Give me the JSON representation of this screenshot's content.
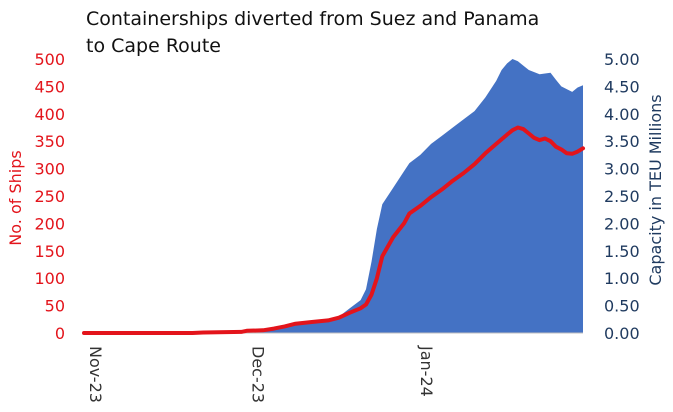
{
  "chart_data": {
    "type": "line",
    "title_lines": [
      "Containerships diverted from Suez and Panama",
      "to Cape Route"
    ],
    "x_ticks": [
      "Nov-23",
      "Dec-23",
      "Jan-24"
    ],
    "x_range_days": [
      0,
      92
    ],
    "y_left": {
      "label": "No. of Ships",
      "ticks": [
        "0",
        "50",
        "100",
        "150",
        "200",
        "250",
        "300",
        "350",
        "400",
        "450",
        "500"
      ],
      "range": [
        0,
        500
      ],
      "color": "#e3141b"
    },
    "y_right": {
      "label": "Capacity in TEU Millions",
      "ticks": [
        "0.00",
        "0.50",
        "1.00",
        "1.50",
        "2.00",
        "2.50",
        "3.00",
        "3.50",
        "4.00",
        "4.50",
        "5.00"
      ],
      "range": [
        0,
        5
      ],
      "color": "#1f3a5f"
    },
    "series": [
      {
        "name": "",
        "axis": "left",
        "kind": "line",
        "color": "#e3141b",
        "points": [
          [
            0,
            0
          ],
          [
            10,
            0
          ],
          [
            20,
            0
          ],
          [
            22,
            1
          ],
          [
            29,
            2
          ],
          [
            30,
            4
          ],
          [
            33,
            5
          ],
          [
            35,
            8
          ],
          [
            37,
            12
          ],
          [
            39,
            17
          ],
          [
            42,
            20
          ],
          [
            45,
            23
          ],
          [
            47,
            28
          ],
          [
            49,
            37
          ],
          [
            51,
            45
          ],
          [
            52,
            52
          ],
          [
            53,
            70
          ],
          [
            54,
            100
          ],
          [
            55,
            140
          ],
          [
            57,
            175
          ],
          [
            59,
            200
          ],
          [
            60,
            218
          ],
          [
            62,
            232
          ],
          [
            64,
            248
          ],
          [
            66,
            262
          ],
          [
            68,
            278
          ],
          [
            70,
            292
          ],
          [
            72,
            308
          ],
          [
            74,
            328
          ],
          [
            76,
            345
          ],
          [
            78,
            362
          ],
          [
            79,
            370
          ],
          [
            80,
            375
          ],
          [
            81,
            372
          ],
          [
            82,
            364
          ],
          [
            83,
            356
          ],
          [
            84,
            352
          ],
          [
            85,
            355
          ],
          [
            86,
            350
          ],
          [
            87,
            340
          ],
          [
            88,
            335
          ],
          [
            89,
            328
          ],
          [
            90,
            327
          ],
          [
            91,
            331
          ],
          [
            92,
            337
          ]
        ]
      },
      {
        "name": "",
        "axis": "right",
        "kind": "area",
        "color": "#4472c4",
        "points": [
          [
            0,
            0
          ],
          [
            10,
            0
          ],
          [
            20,
            0
          ],
          [
            22,
            0.01
          ],
          [
            29,
            0.02
          ],
          [
            30,
            0.04
          ],
          [
            33,
            0.06
          ],
          [
            35,
            0.1
          ],
          [
            37,
            0.15
          ],
          [
            39,
            0.2
          ],
          [
            42,
            0.22
          ],
          [
            45,
            0.26
          ],
          [
            47,
            0.3
          ],
          [
            49,
            0.45
          ],
          [
            51,
            0.6
          ],
          [
            52,
            0.8
          ],
          [
            53,
            1.3
          ],
          [
            54,
            1.9
          ],
          [
            55,
            2.35
          ],
          [
            57,
            2.65
          ],
          [
            59,
            2.95
          ],
          [
            60,
            3.1
          ],
          [
            62,
            3.25
          ],
          [
            64,
            3.45
          ],
          [
            66,
            3.6
          ],
          [
            68,
            3.75
          ],
          [
            70,
            3.9
          ],
          [
            72,
            4.05
          ],
          [
            74,
            4.3
          ],
          [
            76,
            4.6
          ],
          [
            77,
            4.8
          ],
          [
            78,
            4.92
          ],
          [
            79,
            5.0
          ],
          [
            80,
            4.96
          ],
          [
            81,
            4.88
          ],
          [
            82,
            4.8
          ],
          [
            84,
            4.72
          ],
          [
            86,
            4.75
          ],
          [
            87,
            4.62
          ],
          [
            88,
            4.5
          ],
          [
            89,
            4.45
          ],
          [
            90,
            4.4
          ],
          [
            91,
            4.48
          ],
          [
            92,
            4.52
          ]
        ]
      }
    ],
    "grid": false,
    "legend": "none"
  }
}
